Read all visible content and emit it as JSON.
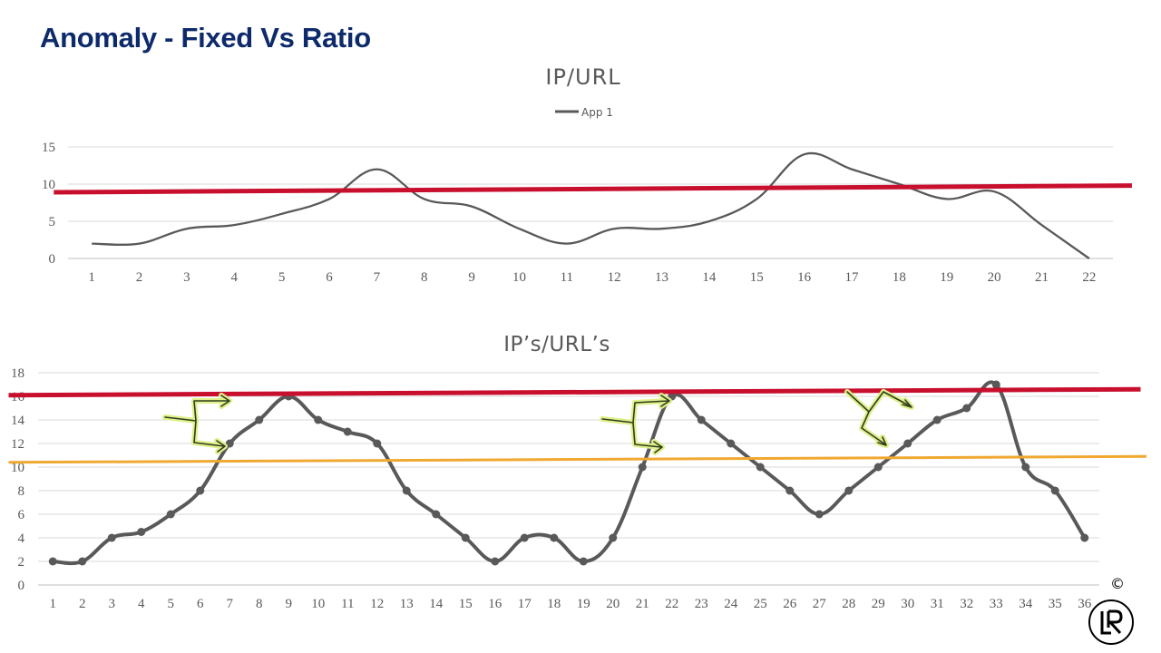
{
  "page": {
    "title": "Anomaly - Fixed Vs Ratio",
    "copyright": "©"
  },
  "colors": {
    "title": "#0d2a6b",
    "series": "#595959",
    "threshold_red": "#c8102e",
    "threshold_orange": "#f0a830",
    "arrow_outline": "#2f3d1f",
    "arrow_glow": "#dff08a",
    "grid": "#d9d9d9"
  },
  "chart_data": [
    {
      "type": "line",
      "title": "IP/URL",
      "legend": {
        "position": "top",
        "entries": [
          "App 1"
        ]
      },
      "xlabel": "",
      "ylabel": "",
      "ylim": [
        0,
        15
      ],
      "grid": true,
      "x": [
        1,
        2,
        3,
        4,
        5,
        6,
        7,
        8,
        9,
        10,
        11,
        12,
        13,
        14,
        15,
        16,
        17,
        18,
        19,
        20,
        21,
        22
      ],
      "series": [
        {
          "name": "App 1",
          "values": [
            2,
            2,
            4,
            4.5,
            6,
            8,
            12,
            8,
            7,
            4,
            2,
            4,
            4,
            5,
            8,
            14,
            12,
            10,
            8,
            9,
            4.5,
            0
          ]
        }
      ],
      "threshold_lines": [
        {
          "color": "red",
          "from": [
            0.2,
            8.9
          ],
          "to": [
            22.9,
            9.8
          ]
        }
      ]
    },
    {
      "type": "line",
      "title": "IP’s/URL’s",
      "xlabel": "",
      "ylabel": "",
      "ylim": [
        0,
        18
      ],
      "grid": true,
      "markers": true,
      "x": [
        1,
        2,
        3,
        4,
        5,
        6,
        7,
        8,
        9,
        10,
        11,
        12,
        13,
        14,
        15,
        16,
        17,
        18,
        19,
        20,
        21,
        22,
        23,
        24,
        25,
        26,
        27,
        28,
        29,
        30,
        31,
        32,
        33,
        34,
        35,
        36
      ],
      "series": [
        {
          "values": [
            2,
            2,
            4,
            4.5,
            6,
            8,
            12,
            14,
            16,
            14,
            13,
            12,
            8,
            6,
            4,
            2,
            4,
            4,
            2,
            4,
            10,
            16,
            14,
            12,
            10,
            8,
            6,
            8,
            10,
            12,
            14,
            15,
            17,
            10,
            8,
            4
          ]
        }
      ],
      "threshold_lines": [
        {
          "color": "red",
          "from": [
            -0.5,
            16.1
          ],
          "to": [
            37.9,
            16.6
          ]
        },
        {
          "color": "orange",
          "from": [
            -0.5,
            10.4
          ],
          "to": [
            38.1,
            10.9
          ]
        }
      ]
    }
  ]
}
